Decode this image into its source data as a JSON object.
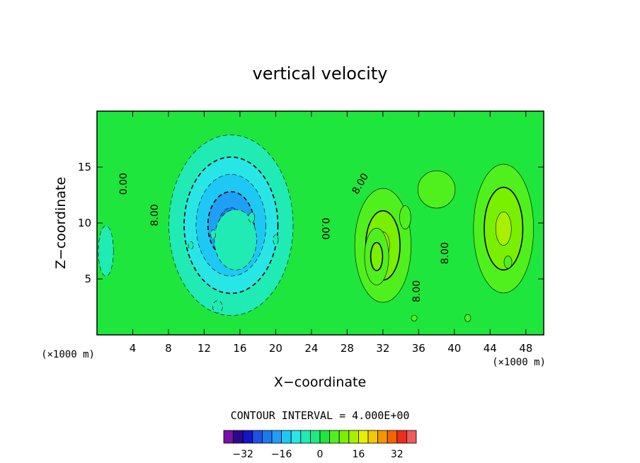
{
  "chart_data": {
    "type": "heatmap",
    "title": "vertical velocity",
    "xlabel": "X−coordinate",
    "ylabel": "Z−coordinate",
    "x_unit": "(×1000 m)",
    "y_unit": "(×1000 m)",
    "xlim": [
      0,
      50
    ],
    "ylim": [
      0,
      20
    ],
    "x_ticks": [
      4,
      8,
      12,
      16,
      20,
      24,
      28,
      32,
      36,
      40,
      44,
      48
    ],
    "x_tick_labels": [
      "4",
      "8",
      "12",
      "16",
      "20",
      "24",
      "28",
      "32",
      "36",
      "40",
      "44",
      "48"
    ],
    "y_ticks": [
      5,
      10,
      15
    ],
    "y_tick_labels": [
      "5",
      "10",
      "15"
    ],
    "contour_interval_text": "CONTOUR INTERVAL = 4.000E+00",
    "contour_interval": 4,
    "contour_labels": [
      {
        "text": "0.00",
        "x": 3.0,
        "y": 13.5,
        "angle": -90
      },
      {
        "text": "8.00",
        "x": 6.5,
        "y": 10.7,
        "angle": -90
      },
      {
        "text": "0.00",
        "x": 25.5,
        "y": 9.5,
        "angle": 90
      },
      {
        "text": "8.00",
        "x": 29.5,
        "y": 13.5,
        "angle": -60
      },
      {
        "text": "8.00",
        "x": 39.0,
        "y": 7.3,
        "angle": -90
      },
      {
        "text": "8.00",
        "x": 35.8,
        "y": 3.9,
        "angle": -90
      }
    ],
    "colorbar": {
      "levels": [
        -40,
        -36,
        -32,
        -28,
        -24,
        -20,
        -16,
        -12,
        -8,
        -4,
        0,
        4,
        8,
        12,
        16,
        20,
        24,
        28,
        32,
        36,
        40
      ],
      "colors": [
        "#7a0faa",
        "#2a0a8a",
        "#1414c8",
        "#1e50e6",
        "#1e78f0",
        "#1ea0f5",
        "#1ec8f5",
        "#28e6e6",
        "#20ebb4",
        "#20e882",
        "#1ee63c",
        "#50f01e",
        "#78f000",
        "#a8f000",
        "#e6f000",
        "#f5c800",
        "#f59600",
        "#f56400",
        "#eb2d1e",
        "#f05a5a",
        "#f59696"
      ],
      "tick_values": [
        -32,
        -16,
        0,
        16,
        32
      ],
      "tick_labels": [
        "−32",
        "−16",
        "0",
        "16",
        "32"
      ]
    },
    "blobs": [
      {
        "cx": 15.0,
        "cy": 9.8,
        "sx": 6.2,
        "sy": 7.2,
        "a": -20
      },
      {
        "cx": 15.5,
        "cy": 8.5,
        "sx": 4.2,
        "sy": 4.8,
        "a": -6
      },
      {
        "cx": 13.5,
        "cy": 2.5,
        "sx": 2.5,
        "sy": 2.5,
        "a": -4
      },
      {
        "cx": 10.5,
        "cy": 8.0,
        "sx": 1.3,
        "sy": 1.5,
        "a": -4
      },
      {
        "cx": 13.0,
        "cy": 9.0,
        "sx": 1.3,
        "sy": 1.8,
        "a": -3
      },
      {
        "cx": 17.3,
        "cy": 10.5,
        "sx": 1.6,
        "sy": 2.0,
        "a": -4
      },
      {
        "cx": 20.0,
        "cy": 8.5,
        "sx": 1.3,
        "sy": 2.0,
        "a": -4
      },
      {
        "cx": 32.0,
        "cy": 8.0,
        "sx": 3.4,
        "sy": 5.5,
        "a": 12
      },
      {
        "cx": 31.3,
        "cy": 7.0,
        "sx": 1.6,
        "sy": 3.0,
        "a": 10
      },
      {
        "cx": 34.5,
        "cy": 10.5,
        "sx": 1.5,
        "sy": 2.5,
        "a": 5
      },
      {
        "cx": 45.5,
        "cy": 9.5,
        "sx": 3.5,
        "sy": 6.0,
        "a": 13
      },
      {
        "cx": 46.0,
        "cy": 6.5,
        "sx": 2.0,
        "sy": 2.5,
        "a": 4
      },
      {
        "cx": 38.0,
        "cy": 13.0,
        "sx": 5.0,
        "sy": 4.0,
        "a": 5
      },
      {
        "cx": 1.0,
        "cy": 7.5,
        "sx": 1.5,
        "sy": 4.0,
        "a": -6
      },
      {
        "cx": 41.5,
        "cy": 1.5,
        "sx": 1.5,
        "sy": 1.5,
        "a": 4
      },
      {
        "cx": 35.5,
        "cy": 1.5,
        "sx": 1.5,
        "sy": 1.2,
        "a": 3
      }
    ]
  }
}
